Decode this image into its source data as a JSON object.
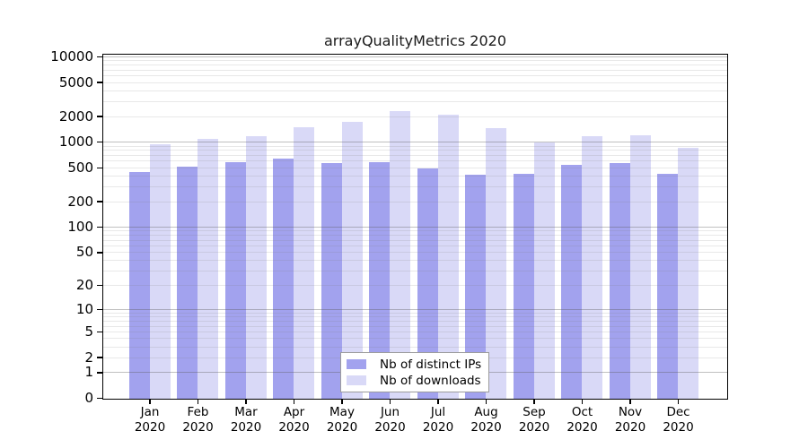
{
  "title": "arrayQualityMetrics 2020",
  "chart_data": {
    "type": "bar",
    "title": "arrayQualityMetrics 2020",
    "yscale": "log1p",
    "ylim": [
      0,
      10000
    ],
    "yticks": [
      0,
      1,
      2,
      5,
      10,
      20,
      50,
      100,
      200,
      500,
      1000,
      2000,
      5000,
      10000
    ],
    "grid": "horizontal major at powers of 10, minor at 2-9 multiples, drawn over bars",
    "months": [
      "Jan",
      "Feb",
      "Mar",
      "Apr",
      "May",
      "Jun",
      "Jul",
      "Aug",
      "Sep",
      "Oct",
      "Nov",
      "Dec"
    ],
    "year": "2020",
    "categories": [
      "Jan 2020",
      "Feb 2020",
      "Mar 2020",
      "Apr 2020",
      "May 2020",
      "Jun 2020",
      "Jul 2020",
      "Aug 2020",
      "Sep 2020",
      "Oct 2020",
      "Nov 2020",
      "Dec 2020"
    ],
    "series": [
      {
        "name": "Nb of distinct IPs",
        "color": "#a2a2ee",
        "values": [
          450,
          520,
          585,
          645,
          580,
          590,
          500,
          420,
          430,
          550,
          580,
          435
        ]
      },
      {
        "name": "Nb of downloads",
        "color": "#d9d9f7",
        "values": [
          950,
          1100,
          1200,
          1500,
          1770,
          2320,
          2130,
          1480,
          1000,
          1180,
          1210,
          860
        ]
      }
    ],
    "legend_position": "inside bottom-center"
  },
  "colors": {
    "background": "#ffffff",
    "axis": "#000000",
    "bar_distinct_ips": "#a2a2ee",
    "bar_downloads": "#d9d9f7",
    "grid_major": "#c2c2c2",
    "grid_minor": "#e8e8e8",
    "legend_border": "#9c9c9c"
  }
}
